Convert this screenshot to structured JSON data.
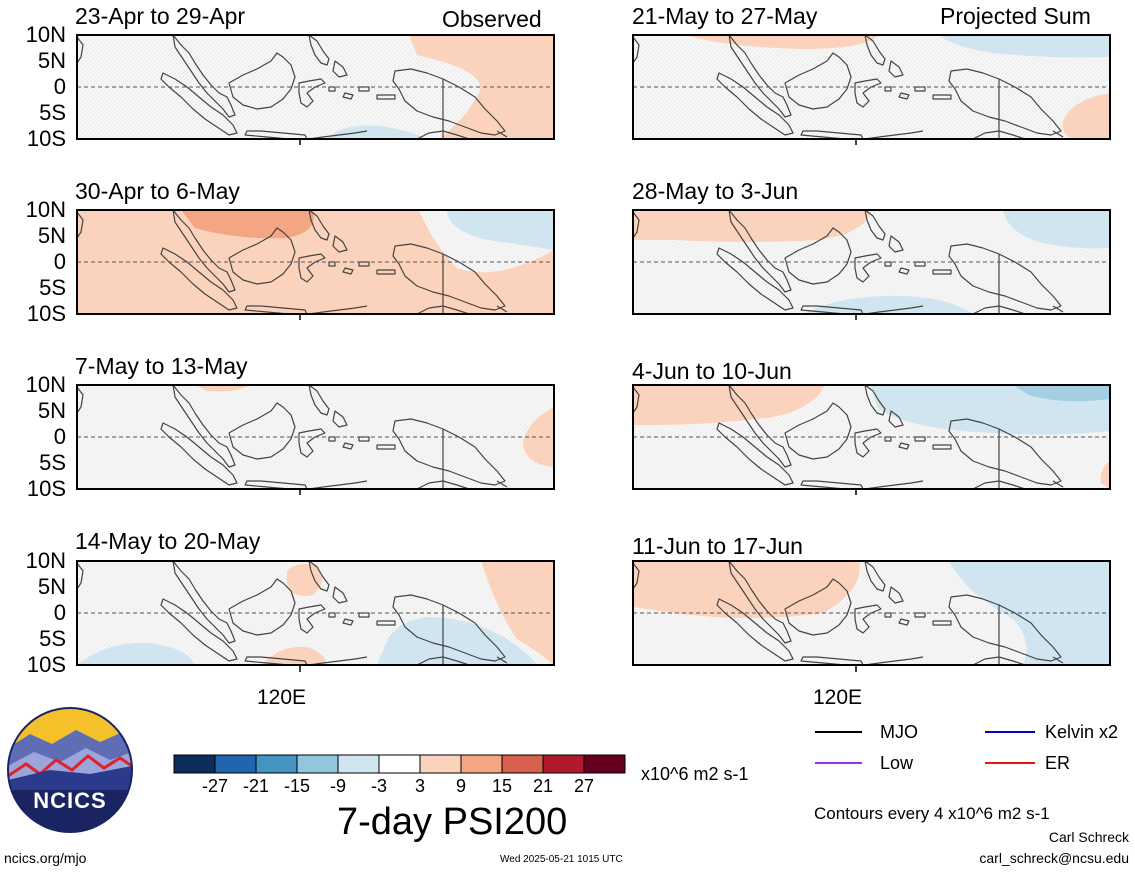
{
  "figure": {
    "title": "7-day PSI200",
    "units": "x10^6 m2 s-1",
    "contour_note": "Contours every 4 x10^6 m2 s-1",
    "author": "Carl Schreck",
    "email": "carl_schreck@ncsu.edu",
    "website": "ncics.org/mjo",
    "timestamp": "Wed 2025-05-21 1015 UTC",
    "logo_text": "NCICS"
  },
  "columns": {
    "left_label": "Observed",
    "right_label": "Projected Sum",
    "lon_label": "120E"
  },
  "lat_labels": [
    "10N",
    "5N",
    "0",
    "5S",
    "10S"
  ],
  "panels": {
    "left": [
      {
        "title": "23-Apr to 29-Apr"
      },
      {
        "title": "30-Apr to 6-May"
      },
      {
        "title": "7-May to 13-May"
      },
      {
        "title": "14-May to 20-May"
      }
    ],
    "right": [
      {
        "title": "21-May to 27-May"
      },
      {
        "title": "28-May to 3-Jun"
      },
      {
        "title": "4-Jun to 10-Jun"
      },
      {
        "title": "11-Jun to 17-Jun"
      }
    ]
  },
  "colorbar": {
    "ticks": [
      "-27",
      "-21",
      "-15",
      "-9",
      "-3",
      "3",
      "9",
      "15",
      "21",
      "27"
    ],
    "colors": [
      "#0b2d5a",
      "#2166ac",
      "#4393c3",
      "#92c5de",
      "#d1e5f0",
      "#ffffff",
      "#fbd3bc",
      "#f4a582",
      "#d6604d",
      "#b2182b",
      "#67001f"
    ]
  },
  "legend": {
    "items": [
      {
        "label": "MJO",
        "color": "#000000"
      },
      {
        "label": "Kelvin x2",
        "color": "#0000cc"
      },
      {
        "label": "Low",
        "color": "#9933dd"
      },
      {
        "label": "ER",
        "color": "#ee1111"
      }
    ]
  }
}
